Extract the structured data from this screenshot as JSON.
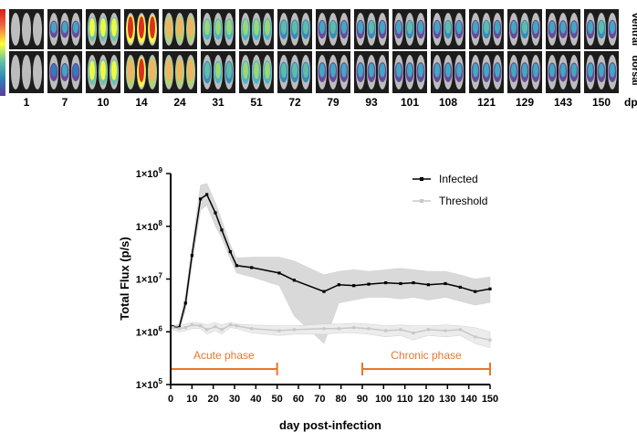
{
  "imaging_strip": {
    "dpi_labels": [
      "1",
      "7",
      "10",
      "14",
      "24",
      "31",
      "51",
      "72",
      "79",
      "93",
      "101",
      "108",
      "121",
      "129",
      "143",
      "150"
    ],
    "dpi_unit": "dpi",
    "row_labels": [
      "ventral",
      "dorsal"
    ],
    "signal_levels": [
      0.0,
      0.25,
      0.7,
      0.95,
      0.85,
      0.5,
      0.55,
      0.4,
      0.35,
      0.35,
      0.35,
      0.35,
      0.35,
      0.35,
      0.3,
      0.35
    ],
    "colorbar_colors": [
      "#d7191c",
      "#f46d43",
      "#ffff33",
      "#66c2a5",
      "#2b83ba",
      "#5e3c99"
    ]
  },
  "chart_data": {
    "type": "line",
    "ylabel": "Total Flux (p/s)",
    "xlabel": "day post-infection",
    "yscale": "log",
    "ylim": [
      100000,
      1000000000
    ],
    "xlim": [
      0,
      150
    ],
    "x_ticks": [
      "0",
      "10",
      "20",
      "30",
      "40",
      "50",
      "60",
      "70",
      "80",
      "90",
      "100",
      "110",
      "120",
      "130",
      "140",
      "150"
    ],
    "y_ticks": [
      {
        "value": 100000,
        "base": "1×10",
        "exp": "5"
      },
      {
        "value": 1000000,
        "base": "1×10",
        "exp": "6"
      },
      {
        "value": 10000000,
        "base": "1×10",
        "exp": "7"
      },
      {
        "value": 100000000,
        "base": "1×10",
        "exp": "8"
      },
      {
        "value": 1000000000,
        "base": "1×10",
        "exp": "9"
      }
    ],
    "legend_position": "top-right",
    "series": [
      {
        "name": "Infected",
        "color": "#000000",
        "x": [
          1,
          4,
          7,
          10,
          14,
          17,
          21,
          24,
          28,
          31,
          38,
          51,
          58,
          72,
          79,
          86,
          93,
          101,
          108,
          114,
          121,
          129,
          136,
          143,
          150
        ],
        "y": [
          1250000,
          1200000,
          3500000,
          28000000,
          330000000,
          400000000,
          180000000,
          85000000,
          33000000,
          18000000,
          16500000,
          13000000,
          9500000,
          5800000,
          7800000,
          7500000,
          8000000,
          8500000,
          8200000,
          8500000,
          7800000,
          8200000,
          7000000,
          5800000,
          6500000
        ],
        "upper": [
          1300000,
          1400000,
          5000000,
          40000000,
          600000000,
          650000000,
          280000000,
          130000000,
          45000000,
          25000000,
          26000000,
          26000000,
          22000000,
          12000000,
          14000000,
          15000000,
          14000000,
          15000000,
          16000000,
          15000000,
          14000000,
          14000000,
          12000000,
          10000000,
          11000000
        ],
        "lower": [
          1200000,
          1050000,
          2500000,
          18000000,
          200000000,
          250000000,
          100000000,
          60000000,
          24000000,
          13000000,
          11000000,
          7500000,
          2000000,
          600000,
          3500000,
          4000000,
          4500000,
          4500000,
          4200000,
          4500000,
          4000000,
          4500000,
          3800000,
          3200000,
          3600000
        ]
      },
      {
        "name": "Threshold",
        "color": "#c8c8c8",
        "x": [
          1,
          4,
          7,
          10,
          14,
          17,
          21,
          24,
          28,
          31,
          38,
          51,
          58,
          72,
          79,
          86,
          93,
          101,
          108,
          114,
          121,
          129,
          136,
          143,
          150
        ],
        "y": [
          1200000,
          1150000,
          1200000,
          1350000,
          1300000,
          1100000,
          1250000,
          1100000,
          1350000,
          1300000,
          1150000,
          1050000,
          1100000,
          1150000,
          1150000,
          1200000,
          1150000,
          1050000,
          1100000,
          950000,
          1100000,
          1050000,
          1100000,
          800000,
          700000
        ],
        "upper": [
          1300000,
          1300000,
          1400000,
          1500000,
          1450000,
          1350000,
          1500000,
          1350000,
          1500000,
          1400000,
          1350000,
          1300000,
          1300000,
          1400000,
          1400000,
          1450000,
          1400000,
          1300000,
          1350000,
          1300000,
          1300000,
          1350000,
          1300000,
          1200000,
          1000000
        ],
        "lower": [
          1100000,
          1000000,
          1050000,
          1150000,
          1150000,
          900000,
          1050000,
          900000,
          1200000,
          1150000,
          950000,
          850000,
          900000,
          900000,
          950000,
          950000,
          900000,
          800000,
          850000,
          700000,
          850000,
          800000,
          850000,
          600000,
          500000
        ]
      }
    ],
    "phases": [
      {
        "label": "Acute phase",
        "start": 0,
        "end": 50,
        "color": "#e8762c"
      },
      {
        "label": "Chronic phase",
        "start": 90,
        "end": 150,
        "color": "#e8762c"
      }
    ]
  }
}
